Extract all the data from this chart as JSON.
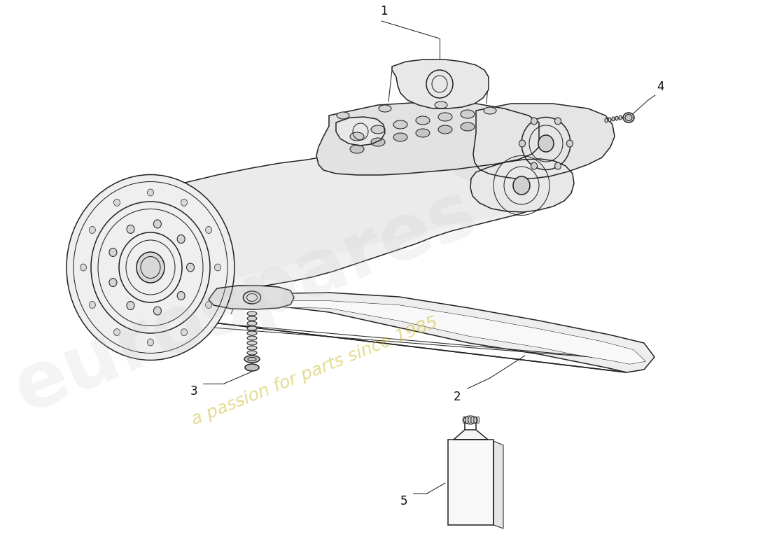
{
  "background_color": "#ffffff",
  "line_color": "#222222",
  "figsize": [
    11.0,
    8.0
  ],
  "dpi": 100,
  "watermark1": "eurospares",
  "watermark2": "a passion for parts since 1985",
  "xlim": [
    0,
    1100
  ],
  "ylim": [
    800,
    0
  ]
}
